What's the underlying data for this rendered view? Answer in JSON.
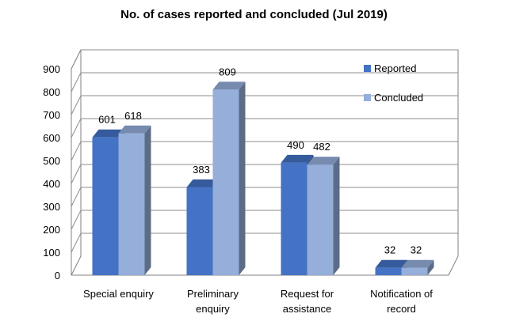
{
  "chart_data": {
    "type": "bar",
    "title": "No. of cases reported and concluded (Jul 2019)",
    "categories": [
      [
        "Special enquiry"
      ],
      [
        "Preliminary",
        "enquiry"
      ],
      [
        "Request for",
        "assistance"
      ],
      [
        "Notification of",
        "record"
      ]
    ],
    "series": [
      {
        "name": "Reported",
        "values": [
          601,
          383,
          490,
          32
        ],
        "color": "#4472C4"
      },
      {
        "name": "Concluded",
        "values": [
          618,
          809,
          482,
          32
        ],
        "color": "#95AEDA"
      }
    ],
    "ylim": [
      0,
      900
    ],
    "yticks": [
      "0",
      "100",
      "200",
      "300",
      "400",
      "500",
      "600",
      "700",
      "800",
      "900"
    ],
    "grid": true,
    "legend": "right",
    "xlabel": "",
    "ylabel": ""
  }
}
